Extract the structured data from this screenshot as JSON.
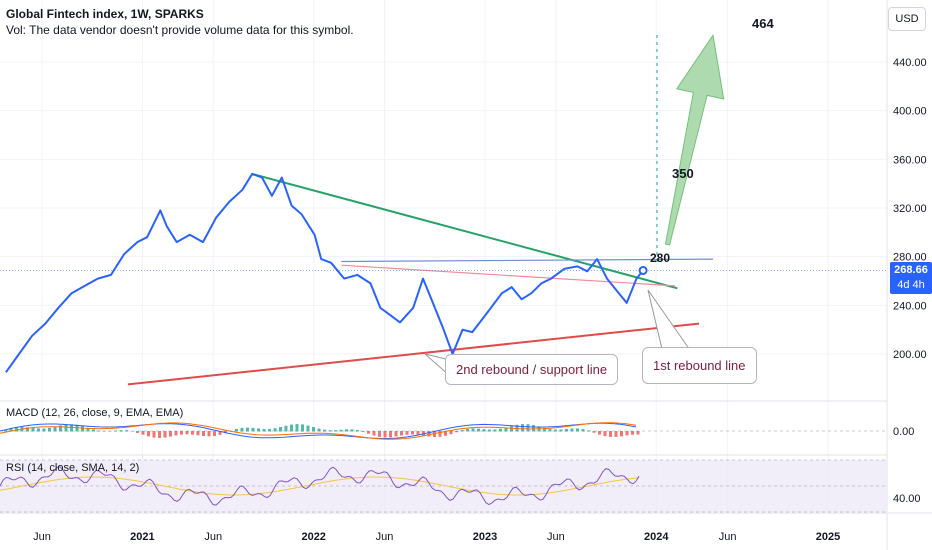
{
  "header": {
    "title": "Global Fintech index, 1W, SPARKS",
    "volume_note": "Vol: The data vendor doesn't provide volume data for this symbol."
  },
  "currency_button": "USD",
  "last_price": {
    "value": "268.66",
    "countdown": "4d 4h"
  },
  "annotations": {
    "target": "464",
    "mid_target": "350",
    "level_280": "280",
    "callout_2nd": "2nd rebound / support line",
    "callout_1st": "1st rebound line"
  },
  "indicators": {
    "macd_label": "MACD (12, 26, close, 9, EMA, EMA)",
    "rsi_label": "RSI (14, close, SMA, 14, 2)",
    "macd_tick": "0.00",
    "rsi_tick": "40.00"
  },
  "colors": {
    "price_line": "#2962ff",
    "downtrend_line": "#26a269",
    "support_line": "#e04b4b",
    "first_rebound_line": "#f28b9b",
    "resistance_280": "#6f8ed6",
    "target_arrow": "#a5d6a7",
    "macd_line": "#2962ff",
    "signal_line": "#ff6d00",
    "rsi_line": "#7e57c2",
    "rsi_ma": "#f5c542"
  },
  "chart_data": {
    "type": "line",
    "symbol": "Global Fintech index",
    "interval": "1W",
    "ylim": [
      175,
      470
    ],
    "y_ticks": [
      200,
      240,
      280,
      320,
      360,
      400,
      440
    ],
    "x_ticks": [
      {
        "label": "Jun",
        "date": "2020-06-01"
      },
      {
        "label": "2021",
        "date": "2021-01-01"
      },
      {
        "label": "Jun",
        "date": "2021-06-01"
      },
      {
        "label": "2022",
        "date": "2022-01-01"
      },
      {
        "label": "Jun",
        "date": "2022-06-01"
      },
      {
        "label": "2023",
        "date": "2023-01-01"
      },
      {
        "label": "Jun",
        "date": "2023-06-01"
      },
      {
        "label": "2024",
        "date": "2024-01-01"
      },
      {
        "label": "Jun",
        "date": "2024-06-01"
      },
      {
        "label": "2025",
        "date": "2025-01-01"
      }
    ],
    "series": [
      {
        "name": "Global Fintech index",
        "points": [
          [
            "2020-03-16",
            185
          ],
          [
            "2020-04-13",
            200
          ],
          [
            "2020-05-11",
            215
          ],
          [
            "2020-06-08",
            225
          ],
          [
            "2020-07-06",
            238
          ],
          [
            "2020-08-03",
            250
          ],
          [
            "2020-08-31",
            256
          ],
          [
            "2020-09-28",
            262
          ],
          [
            "2020-10-26",
            265
          ],
          [
            "2020-11-23",
            282
          ],
          [
            "2020-12-21",
            292
          ],
          [
            "2021-01-11",
            296
          ],
          [
            "2021-02-08",
            318
          ],
          [
            "2021-02-22",
            305
          ],
          [
            "2021-03-15",
            292
          ],
          [
            "2021-04-12",
            298
          ],
          [
            "2021-05-10",
            292
          ],
          [
            "2021-06-07",
            312
          ],
          [
            "2021-07-05",
            325
          ],
          [
            "2021-08-02",
            335
          ],
          [
            "2021-08-23",
            348
          ],
          [
            "2021-09-13",
            345
          ],
          [
            "2021-10-04",
            330
          ],
          [
            "2021-10-25",
            345
          ],
          [
            "2021-11-15",
            322
          ],
          [
            "2021-12-06",
            315
          ],
          [
            "2022-01-03",
            298
          ],
          [
            "2022-01-17",
            278
          ],
          [
            "2022-02-07",
            275
          ],
          [
            "2022-03-07",
            262
          ],
          [
            "2022-04-04",
            265
          ],
          [
            "2022-05-02",
            258
          ],
          [
            "2022-05-23",
            238
          ],
          [
            "2022-06-13",
            232
          ],
          [
            "2022-07-04",
            226
          ],
          [
            "2022-08-01",
            238
          ],
          [
            "2022-08-22",
            262
          ],
          [
            "2022-09-12",
            242
          ],
          [
            "2022-10-03",
            222
          ],
          [
            "2022-10-24",
            200
          ],
          [
            "2022-11-14",
            220
          ],
          [
            "2022-12-05",
            218
          ],
          [
            "2023-01-02",
            232
          ],
          [
            "2023-02-06",
            250
          ],
          [
            "2023-02-27",
            255
          ],
          [
            "2023-03-20",
            245
          ],
          [
            "2023-04-10",
            250
          ],
          [
            "2023-05-01",
            258
          ],
          [
            "2023-05-22",
            262
          ],
          [
            "2023-06-19",
            270
          ],
          [
            "2023-07-17",
            272
          ],
          [
            "2023-08-07",
            268
          ],
          [
            "2023-08-28",
            278
          ],
          [
            "2023-09-18",
            262
          ],
          [
            "2023-10-09",
            252
          ],
          [
            "2023-10-30",
            242
          ],
          [
            "2023-11-20",
            262
          ],
          [
            "2023-12-04",
            268.66
          ]
        ]
      }
    ],
    "last_value": 268.66,
    "trendlines": [
      {
        "name": "downtrend",
        "from": [
          "2021-08-23",
          348
        ],
        "to": [
          "2024-02-15",
          254
        ]
      },
      {
        "name": "support",
        "from": [
          "2020-12-01",
          175
        ],
        "to": [
          "2024-04-01",
          225
        ]
      },
      {
        "name": "first_rebound",
        "from": [
          "2022-03-01",
          273
        ],
        "to": [
          "2024-02-10",
          256
        ]
      },
      {
        "name": "resistance_280",
        "from": [
          "2022-03-01",
          276
        ],
        "to": [
          "2024-05-01",
          278
        ]
      }
    ],
    "target_arrow": {
      "from": [
        "2024-01-25",
        290
      ],
      "to": [
        "2024-05-01",
        462
      ]
    },
    "indicators": [
      {
        "name": "MACD",
        "params": "12, 26, close, 9, EMA, EMA",
        "zero_line": 0.0
      },
      {
        "name": "RSI",
        "params": "14, close, SMA, 14, 2",
        "level": 40.0
      }
    ]
  }
}
